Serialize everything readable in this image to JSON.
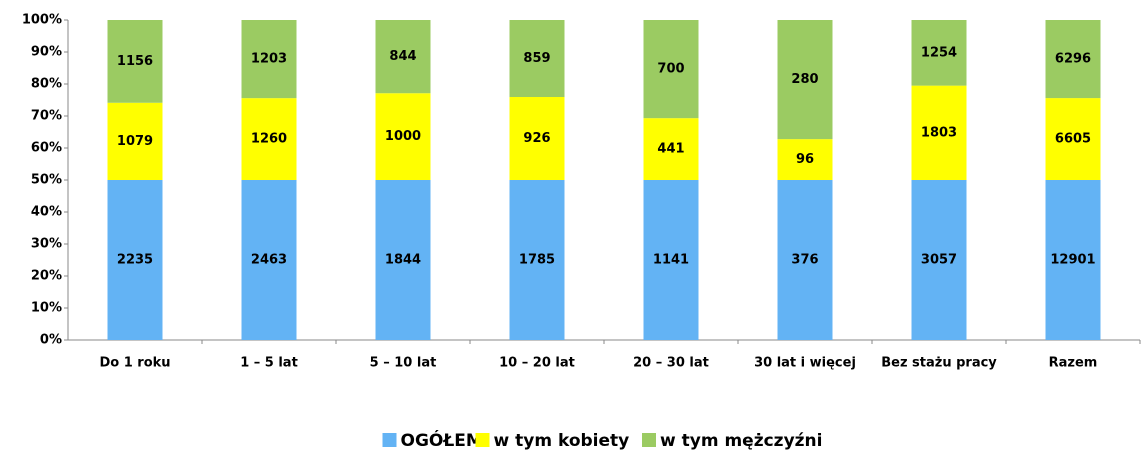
{
  "chart_data": {
    "type": "bar",
    "stacked": "percent",
    "categories": [
      "Do 1 roku",
      "1 – 5 lat",
      "5 – 10 lat",
      "10 – 20 lat",
      "20 – 30 lat",
      "30 lat i więcej",
      "Bez stażu pracy",
      "Razem"
    ],
    "series": [
      {
        "name": "OGÓŁEM",
        "color": "#63b3f4",
        "values": [
          2235,
          2463,
          1844,
          1785,
          1141,
          376,
          3057,
          12901
        ]
      },
      {
        "name": "w tym kobiety",
        "color": "#ffff00",
        "values": [
          1079,
          1260,
          1000,
          926,
          441,
          96,
          1803,
          6605
        ]
      },
      {
        "name": "w tym mężczyźni",
        "color": "#9bcb62",
        "values": [
          1156,
          1203,
          844,
          859,
          700,
          280,
          1254,
          6296
        ]
      }
    ],
    "ylim": [
      0,
      100
    ],
    "yticks": [
      {
        "value": 0,
        "label": "0%"
      },
      {
        "value": 10,
        "label": "10%"
      },
      {
        "value": 20,
        "label": "20%"
      },
      {
        "value": 30,
        "label": "30%"
      },
      {
        "value": 40,
        "label": "40%"
      },
      {
        "value": 50,
        "label": "50%"
      },
      {
        "value": 60,
        "label": "60%"
      },
      {
        "value": 70,
        "label": "70%"
      },
      {
        "value": 80,
        "label": "80%"
      },
      {
        "value": 90,
        "label": "90%"
      },
      {
        "value": 100,
        "label": "100%"
      }
    ],
    "grid": false,
    "legend": "bottom"
  }
}
